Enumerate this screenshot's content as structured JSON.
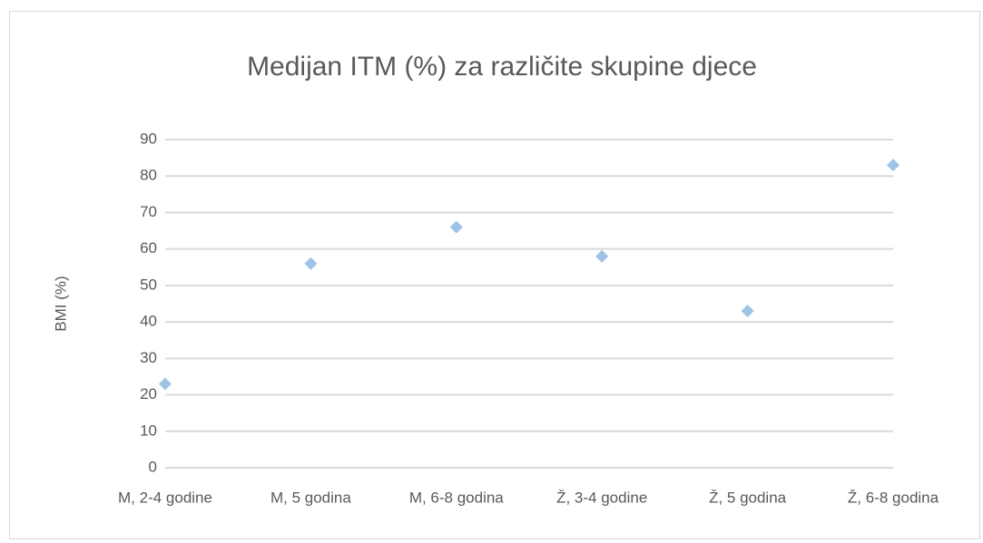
{
  "chart_data": {
    "type": "scatter",
    "title": "Medijan ITM (%) za različite skupine djece",
    "y_label": "BMI (%)",
    "categories": [
      "M, 2-4 godine",
      "M, 5 godina",
      "M, 6-8 godina",
      "Ž, 3-4 godine",
      "Ž, 5 godina",
      "Ž, 6-8 godina"
    ],
    "values": [
      23,
      56,
      66,
      58,
      43,
      83
    ],
    "color": "#9dc3e6",
    "ylim": [
      0,
      90
    ],
    "yticks": [
      0,
      10,
      20,
      30,
      40,
      50,
      60,
      70,
      80,
      90
    ],
    "grid": true
  }
}
